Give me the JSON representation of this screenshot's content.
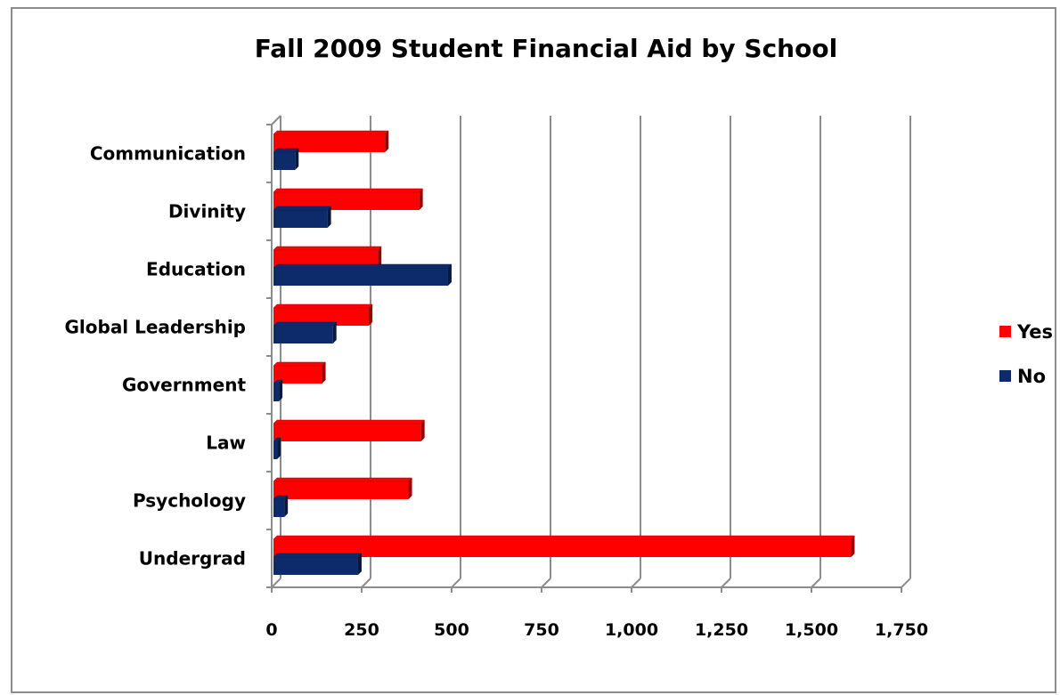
{
  "chart_data": {
    "type": "bar",
    "orientation": "horizontal",
    "title": "Fall 2009 Student Financial Aid by School",
    "xlabel": "",
    "ylabel": "",
    "xlim": [
      0,
      1750
    ],
    "xticks": [
      "0",
      "250",
      "500",
      "750",
      "1,000",
      "1,250",
      "1,500",
      "1,750"
    ],
    "categories": [
      "Communication",
      "Divinity",
      "Education",
      "Global Leadership",
      "Government",
      "Law",
      "Psychology",
      "Undergrad"
    ],
    "series": [
      {
        "name": "Yes",
        "color": "#ff0000",
        "values": [
          315,
          410,
          295,
          270,
          140,
          415,
          380,
          1610
        ]
      },
      {
        "name": "No",
        "color": "#0d2a6b",
        "values": [
          65,
          155,
          490,
          170,
          20,
          15,
          35,
          240
        ]
      }
    ],
    "grid": true,
    "legend": "right"
  }
}
